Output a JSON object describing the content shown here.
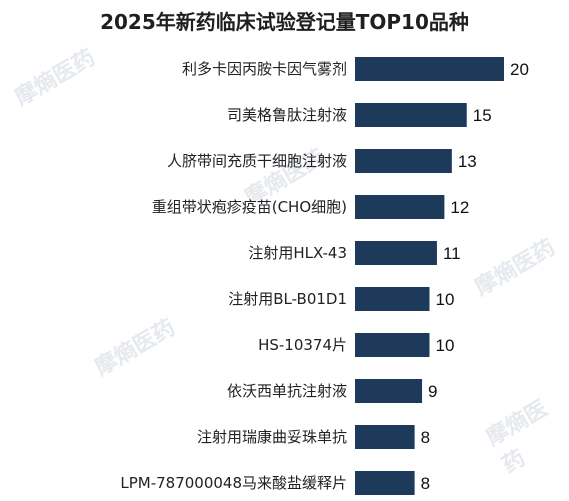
{
  "watermark_text": "摩熵医药",
  "chart_data": {
    "type": "bar",
    "orientation": "horizontal",
    "title": "2025年新药临床试验登记量TOP10品种",
    "xlabel": "",
    "ylabel": "",
    "bar_color": "#1e3a5a",
    "xlim": [
      0,
      20
    ],
    "grid": false,
    "categories": [
      "利多卡因丙胺卡因气雾剂",
      "司美格鲁肽注射液",
      "人脐带间充质干细胞注射液",
      "重组带状疱疹疫苗(CHO细胞)",
      "注射用HLX-43",
      "注射用BL-B01D1",
      "HS-10374片",
      "依沃西单抗注射液",
      "注射用瑞康曲妥珠单抗",
      "LPM-787000048马来酸盐缓释片"
    ],
    "values": [
      20,
      15,
      13,
      12,
      11,
      10,
      10,
      9,
      8,
      8
    ]
  }
}
